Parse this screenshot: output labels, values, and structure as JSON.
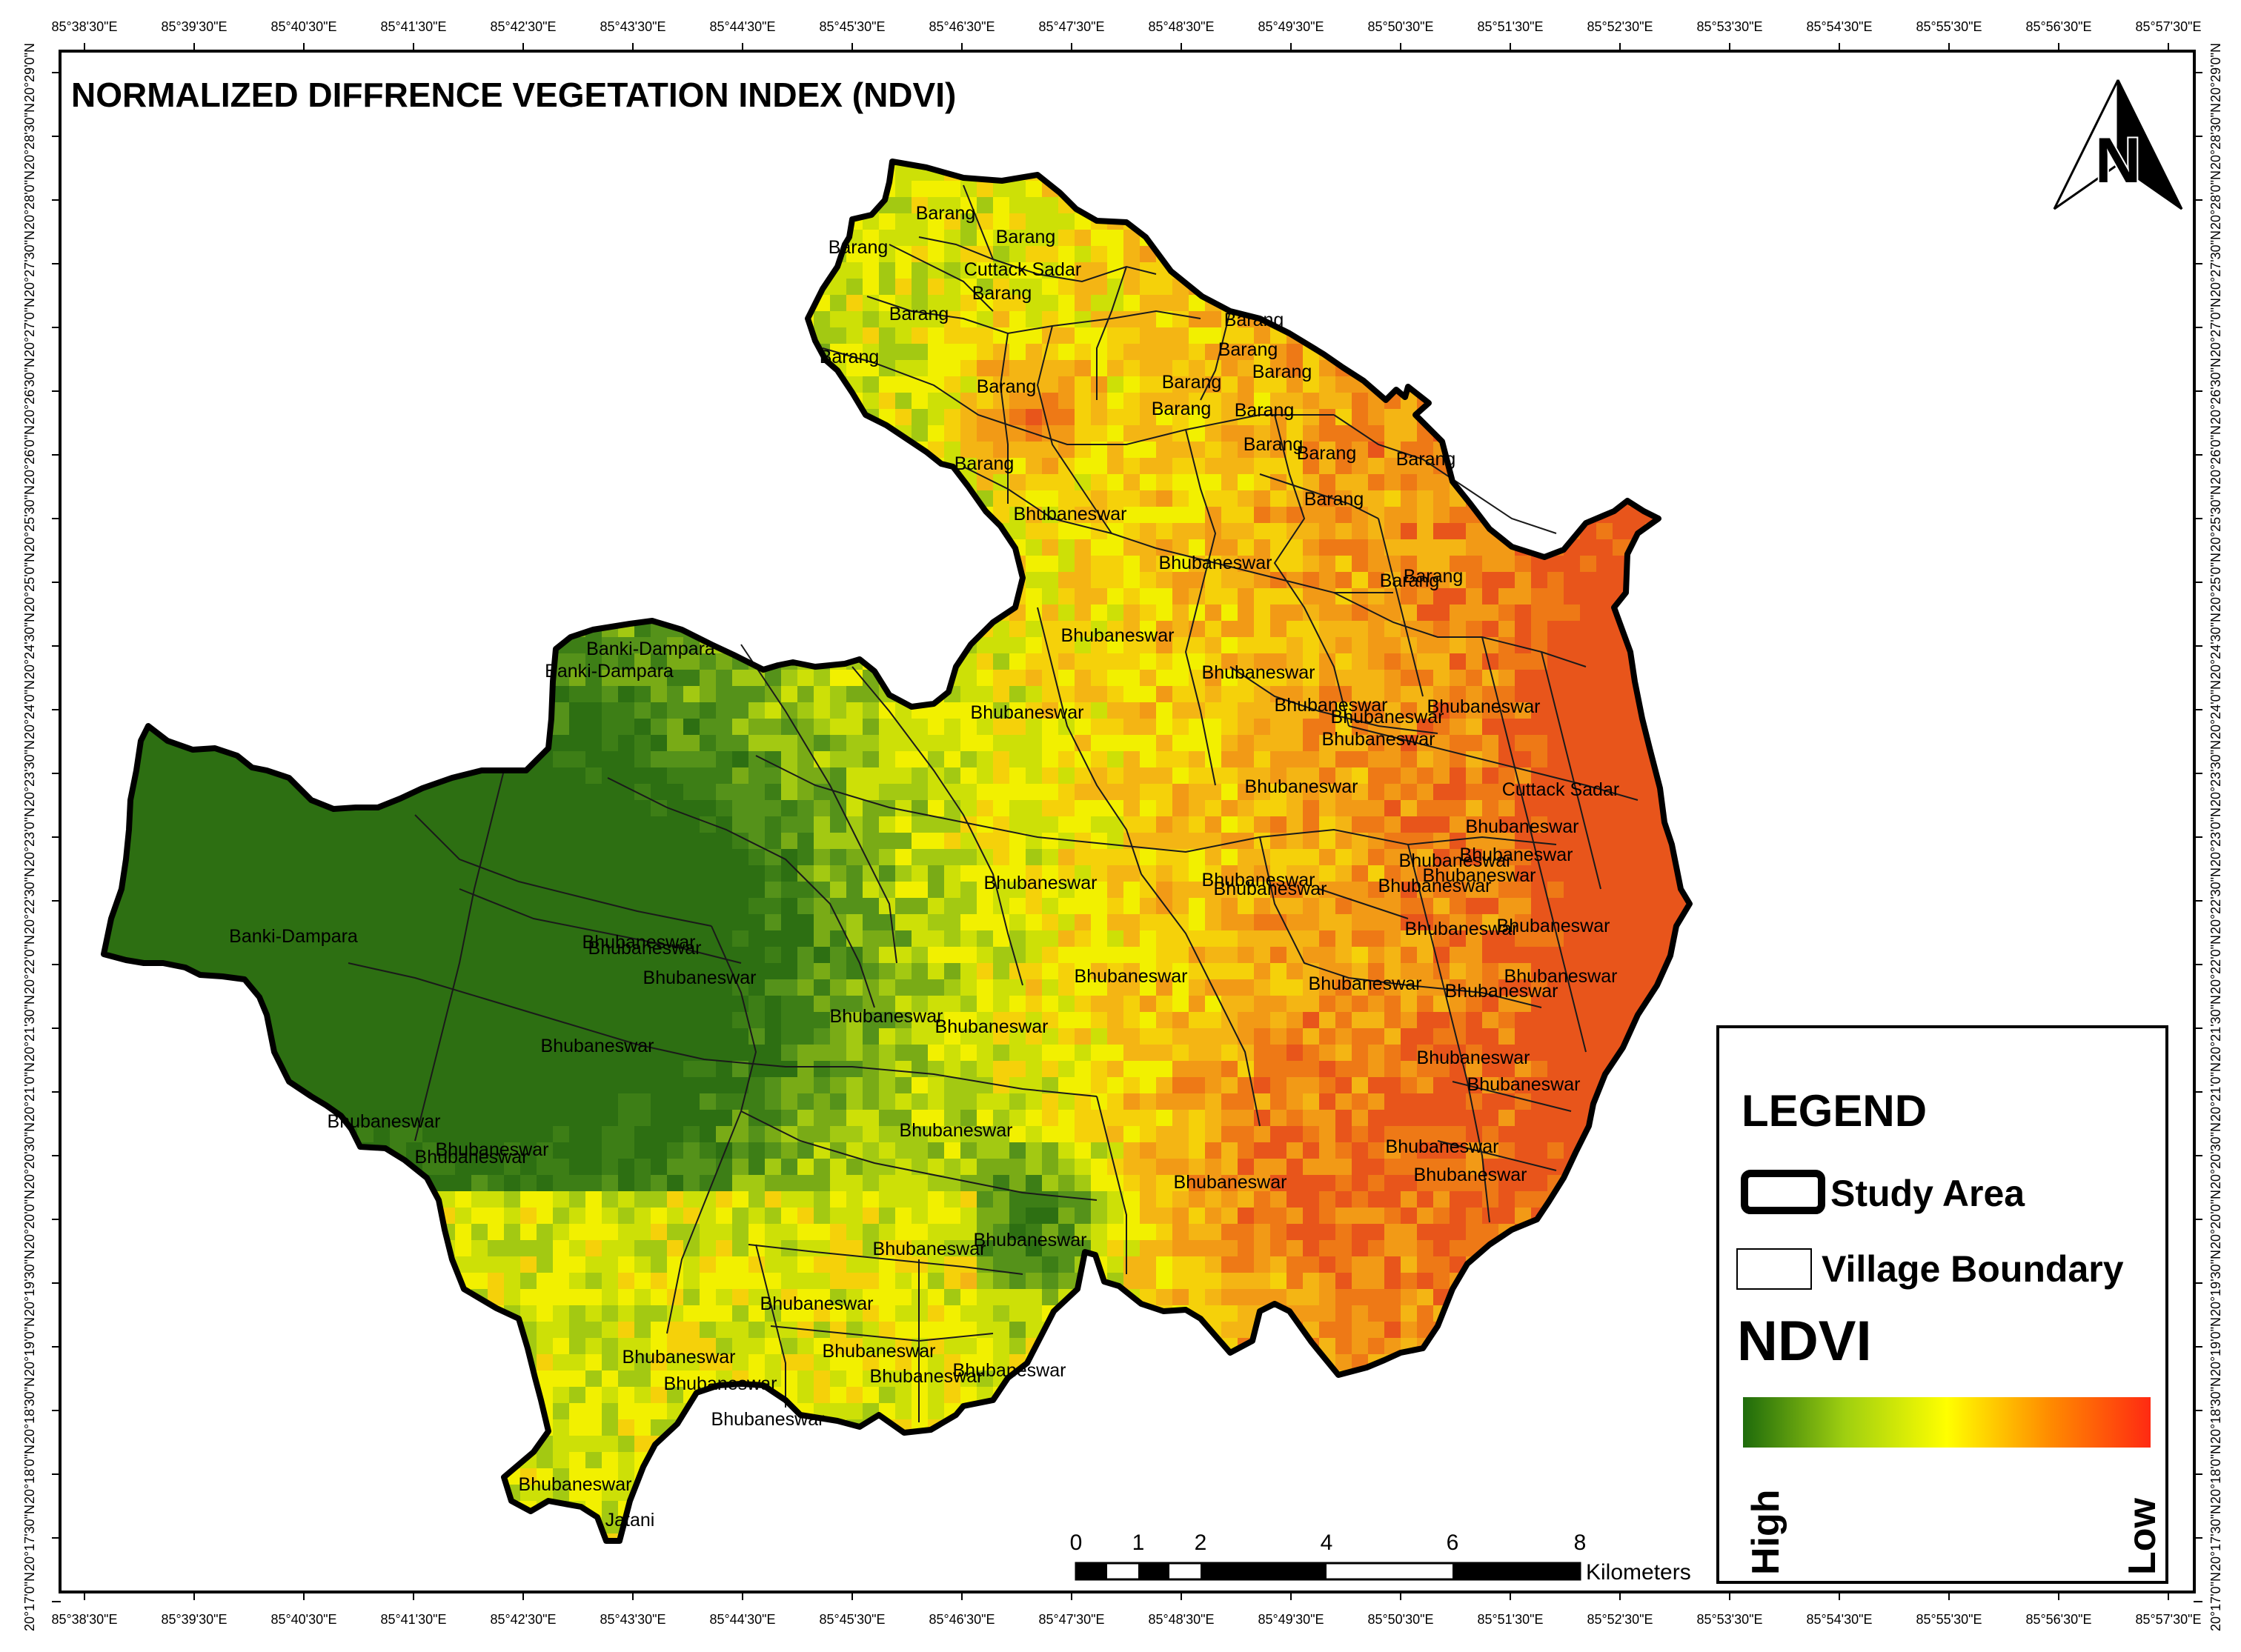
{
  "title": "NORMALIZED DIFFRENCE VEGETATION INDEX (NDVI)",
  "north_arrow_label": "N",
  "lon_ticks": [
    "85°38'30\"E",
    "85°39'30\"E",
    "85°40'30\"E",
    "85°41'30\"E",
    "85°42'30\"E",
    "85°43'30\"E",
    "85°44'30\"E",
    "85°45'30\"E",
    "85°46'30\"E",
    "85°47'30\"E",
    "85°48'30\"E",
    "85°49'30\"E",
    "85°50'30\"E",
    "85°51'30\"E",
    "85°52'30\"E",
    "85°53'30\"E",
    "85°54'30\"E",
    "85°55'30\"E",
    "85°56'30\"E",
    "85°57'30\"E"
  ],
  "lat_ticks": [
    "20°29'0\"N",
    "20°28'30\"N",
    "20°28'0\"N",
    "20°27'30\"N",
    "20°27'0\"N",
    "20°26'30\"N",
    "20°26'0\"N",
    "20°25'30\"N",
    "20°25'0\"N",
    "20°24'30\"N",
    "20°24'0\"N",
    "20°23'30\"N",
    "20°23'0\"N",
    "20°22'30\"N",
    "20°22'0\"N",
    "20°21'30\"N",
    "20°21'0\"N",
    "20°20'30\"N",
    "20°20'0\"N",
    "20°19'30\"N",
    "20°19'0\"N",
    "20°18'30\"N",
    "20°18'0\"N",
    "20°17'30\"N",
    "20°17'0\"N"
  ],
  "villages": [
    "Barang",
    "Barang",
    "Barang",
    "Cuttack Sadar",
    "Barang",
    "Barang",
    "Barang",
    "Barang",
    "Barang",
    "Barang",
    "Barang",
    "Barang",
    "Barang",
    "Barang",
    "Barang",
    "Barang",
    "Barang",
    "Barang",
    "Barang",
    "Barang",
    "Barang",
    "Bhubaneswar",
    "Bhubaneswar",
    "Bhubaneswar",
    "Bhubaneswar",
    "Bhubaneswar",
    "Bhubaneswar",
    "Bhubaneswar",
    "Bhubaneswar",
    "Bhubaneswar",
    "Cuttack Sadar",
    "Bhubaneswar",
    "Bhubaneswar",
    "Bhubaneswar",
    "Bhubaneswar",
    "Bhubaneswar",
    "Bhubaneswar",
    "Bhubaneswar",
    "Bhubaneswar",
    "Bhubaneswar",
    "Bhubaneswar",
    "Bhubaneswar",
    "Bhubaneswar",
    "Bhubaneswar",
    "Bhubaneswar",
    "Bhubaneswar",
    "Bhubaneswar",
    "Bhubaneswar",
    "Bhubaneswar",
    "Bhubaneswar",
    "Bhubaneswar",
    "Bhubaneswar",
    "Bhubaneswar",
    "Bhubaneswar",
    "Bhubaneswar",
    "Bhubaneswar",
    "Bhubaneswar",
    "Bhubaneswar",
    "Bhubaneswar",
    "Bhubaneswar",
    "Bhubaneswar",
    "Bhubaneswar",
    "Bhubaneswar",
    "Bhubaneswar",
    "Bhubaneswar",
    "Bhubaneswar",
    "Bhubaneswar",
    "Bhubaneswar",
    "Bhubaneswar",
    "Bhubaneswar",
    "Banki-Dampara",
    "Banki-Dampara",
    "Banki-Dampara",
    "Bhubaneswar",
    "Jatani"
  ],
  "legend": {
    "heading": "LEGEND",
    "study_area": "Study Area",
    "village_boundary": "Village Boundary",
    "ndvi_heading": "NDVI",
    "high": "High",
    "low": "Low",
    "ramp_colors": [
      "#1e6b0c",
      "#9fcf10",
      "#ffff00",
      "#ff8c00",
      "#ff2a12"
    ]
  },
  "scale_bar": {
    "ticks": [
      "0",
      "1",
      "2",
      "4",
      "6",
      "8"
    ],
    "unit": "Kilometers"
  },
  "ndvi_colors": [
    "#2d6f12",
    "#3d7e16",
    "#55921a",
    "#79ab16",
    "#a3c912",
    "#cde007",
    "#f2f000",
    "#f5d10a",
    "#f4b514",
    "#f29a16",
    "#ee7916",
    "#e8551b"
  ]
}
